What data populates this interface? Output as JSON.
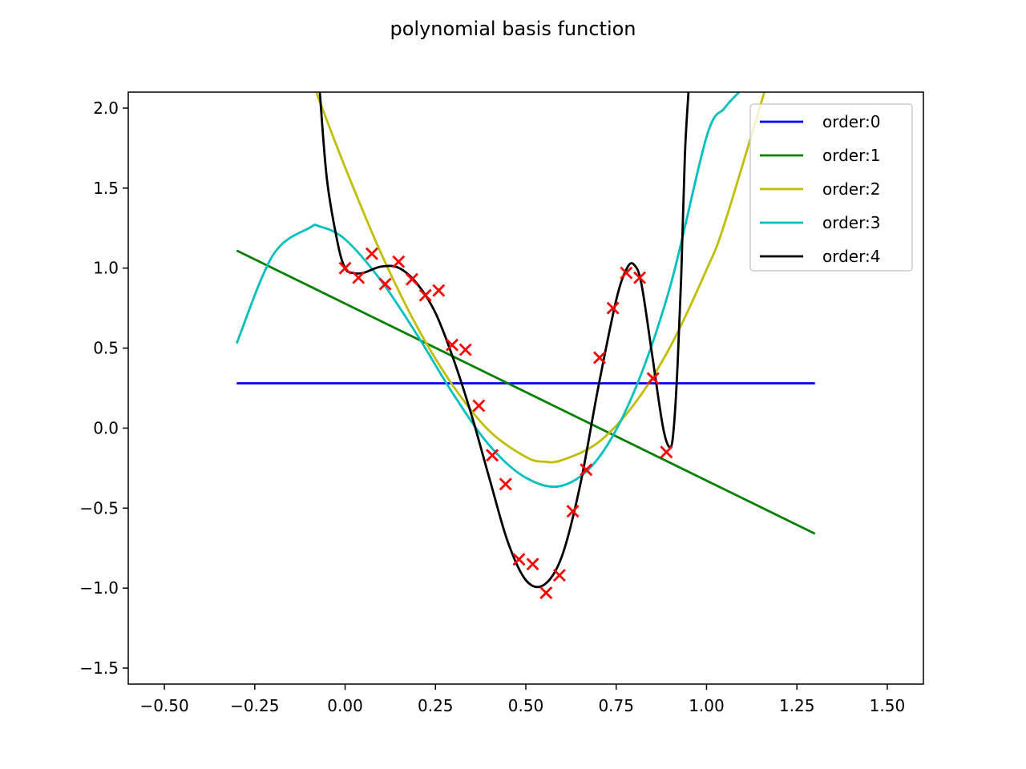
{
  "chart_data": {
    "type": "line",
    "title": "polynomial basis function",
    "xlabel": "",
    "ylabel": "",
    "xlim": [
      -0.6,
      1.6
    ],
    "ylim": [
      -1.6,
      2.1
    ],
    "xticks": [
      -0.5,
      -0.25,
      0.0,
      0.25,
      0.5,
      0.75,
      1.0,
      1.25,
      1.5
    ],
    "xtick_labels": [
      "−0.50",
      "−0.25",
      "0.00",
      "0.25",
      "0.50",
      "0.75",
      "1.00",
      "1.25",
      "1.50"
    ],
    "yticks": [
      -1.5,
      -1.0,
      -0.5,
      0.0,
      0.5,
      1.0,
      1.5,
      2.0
    ],
    "ytick_labels": [
      "−1.5",
      "−1.0",
      "−0.5",
      "0.0",
      "0.5",
      "1.0",
      "1.5",
      "2.0"
    ],
    "grid": false,
    "legend_position": "top-right",
    "series": [
      {
        "name": "order:0",
        "color": "#0000ff",
        "x": [
          -0.3,
          1.3
        ],
        "y": [
          0.28,
          0.28
        ]
      },
      {
        "name": "order:1",
        "color": "#008000",
        "x": [
          -0.3,
          1.3
        ],
        "y": [
          1.11,
          -0.66
        ]
      },
      {
        "name": "order:2",
        "color": "#bfbf00",
        "x": [
          -0.08,
          0.0,
          0.1,
          0.2,
          0.3,
          0.4,
          0.5,
          0.55,
          0.6,
          0.7,
          0.8,
          0.9,
          1.0,
          1.05,
          1.16
        ],
        "y": [
          2.1,
          1.63,
          1.09,
          0.63,
          0.26,
          -0.02,
          -0.18,
          -0.21,
          -0.2,
          -0.09,
          0.15,
          0.51,
          0.99,
          1.28,
          2.1
        ]
      },
      {
        "name": "order:3",
        "color": "#00bfbf",
        "x": [
          -0.3,
          -0.2,
          -0.1,
          -0.07,
          0.0,
          0.1,
          0.2,
          0.3,
          0.4,
          0.5,
          0.6,
          0.7,
          0.8,
          0.9,
          1.0,
          1.05,
          1.09
        ],
        "y": [
          0.53,
          1.08,
          1.25,
          1.26,
          1.18,
          0.92,
          0.58,
          0.21,
          -0.11,
          -0.31,
          -0.36,
          -0.19,
          0.23,
          0.89,
          1.82,
          2.0,
          2.1
        ]
      },
      {
        "name": "order:4",
        "color": "#000000",
        "x": [
          -0.07,
          -0.05,
          -0.02,
          0.0,
          0.02,
          0.05,
          0.1,
          0.15,
          0.2,
          0.25,
          0.3,
          0.35,
          0.4,
          0.45,
          0.5,
          0.55,
          0.6,
          0.65,
          0.7,
          0.75,
          0.78,
          0.8,
          0.82,
          0.85,
          0.88,
          0.9,
          0.91,
          0.92,
          0.93,
          0.94,
          0.95
        ],
        "y": [
          2.1,
          1.55,
          1.15,
          1.0,
          0.97,
          0.97,
          1.01,
          1.0,
          0.9,
          0.72,
          0.43,
          0.08,
          -0.32,
          -0.71,
          -0.95,
          -0.98,
          -0.8,
          -0.36,
          0.25,
          0.8,
          1.0,
          1.02,
          0.9,
          0.45,
          0.0,
          -0.12,
          0.02,
          0.4,
          0.95,
          1.7,
          2.1
        ]
      }
    ],
    "scatter": {
      "color": "#ff0000",
      "marker": "x",
      "x": [
        0.0,
        0.037,
        0.074,
        0.111,
        0.148,
        0.185,
        0.222,
        0.259,
        0.296,
        0.333,
        0.37,
        0.407,
        0.444,
        0.481,
        0.519,
        0.556,
        0.593,
        0.63,
        0.667,
        0.704,
        0.741,
        0.778,
        0.815,
        0.852,
        0.889
      ],
      "y": [
        1.0,
        0.94,
        1.09,
        0.9,
        1.04,
        0.93,
        0.83,
        0.86,
        0.52,
        0.49,
        0.14,
        -0.17,
        -0.35,
        -0.82,
        -0.85,
        -1.03,
        -0.92,
        -0.52,
        -0.26,
        0.44,
        0.75,
        0.97,
        0.94,
        0.31,
        -0.15
      ]
    }
  }
}
